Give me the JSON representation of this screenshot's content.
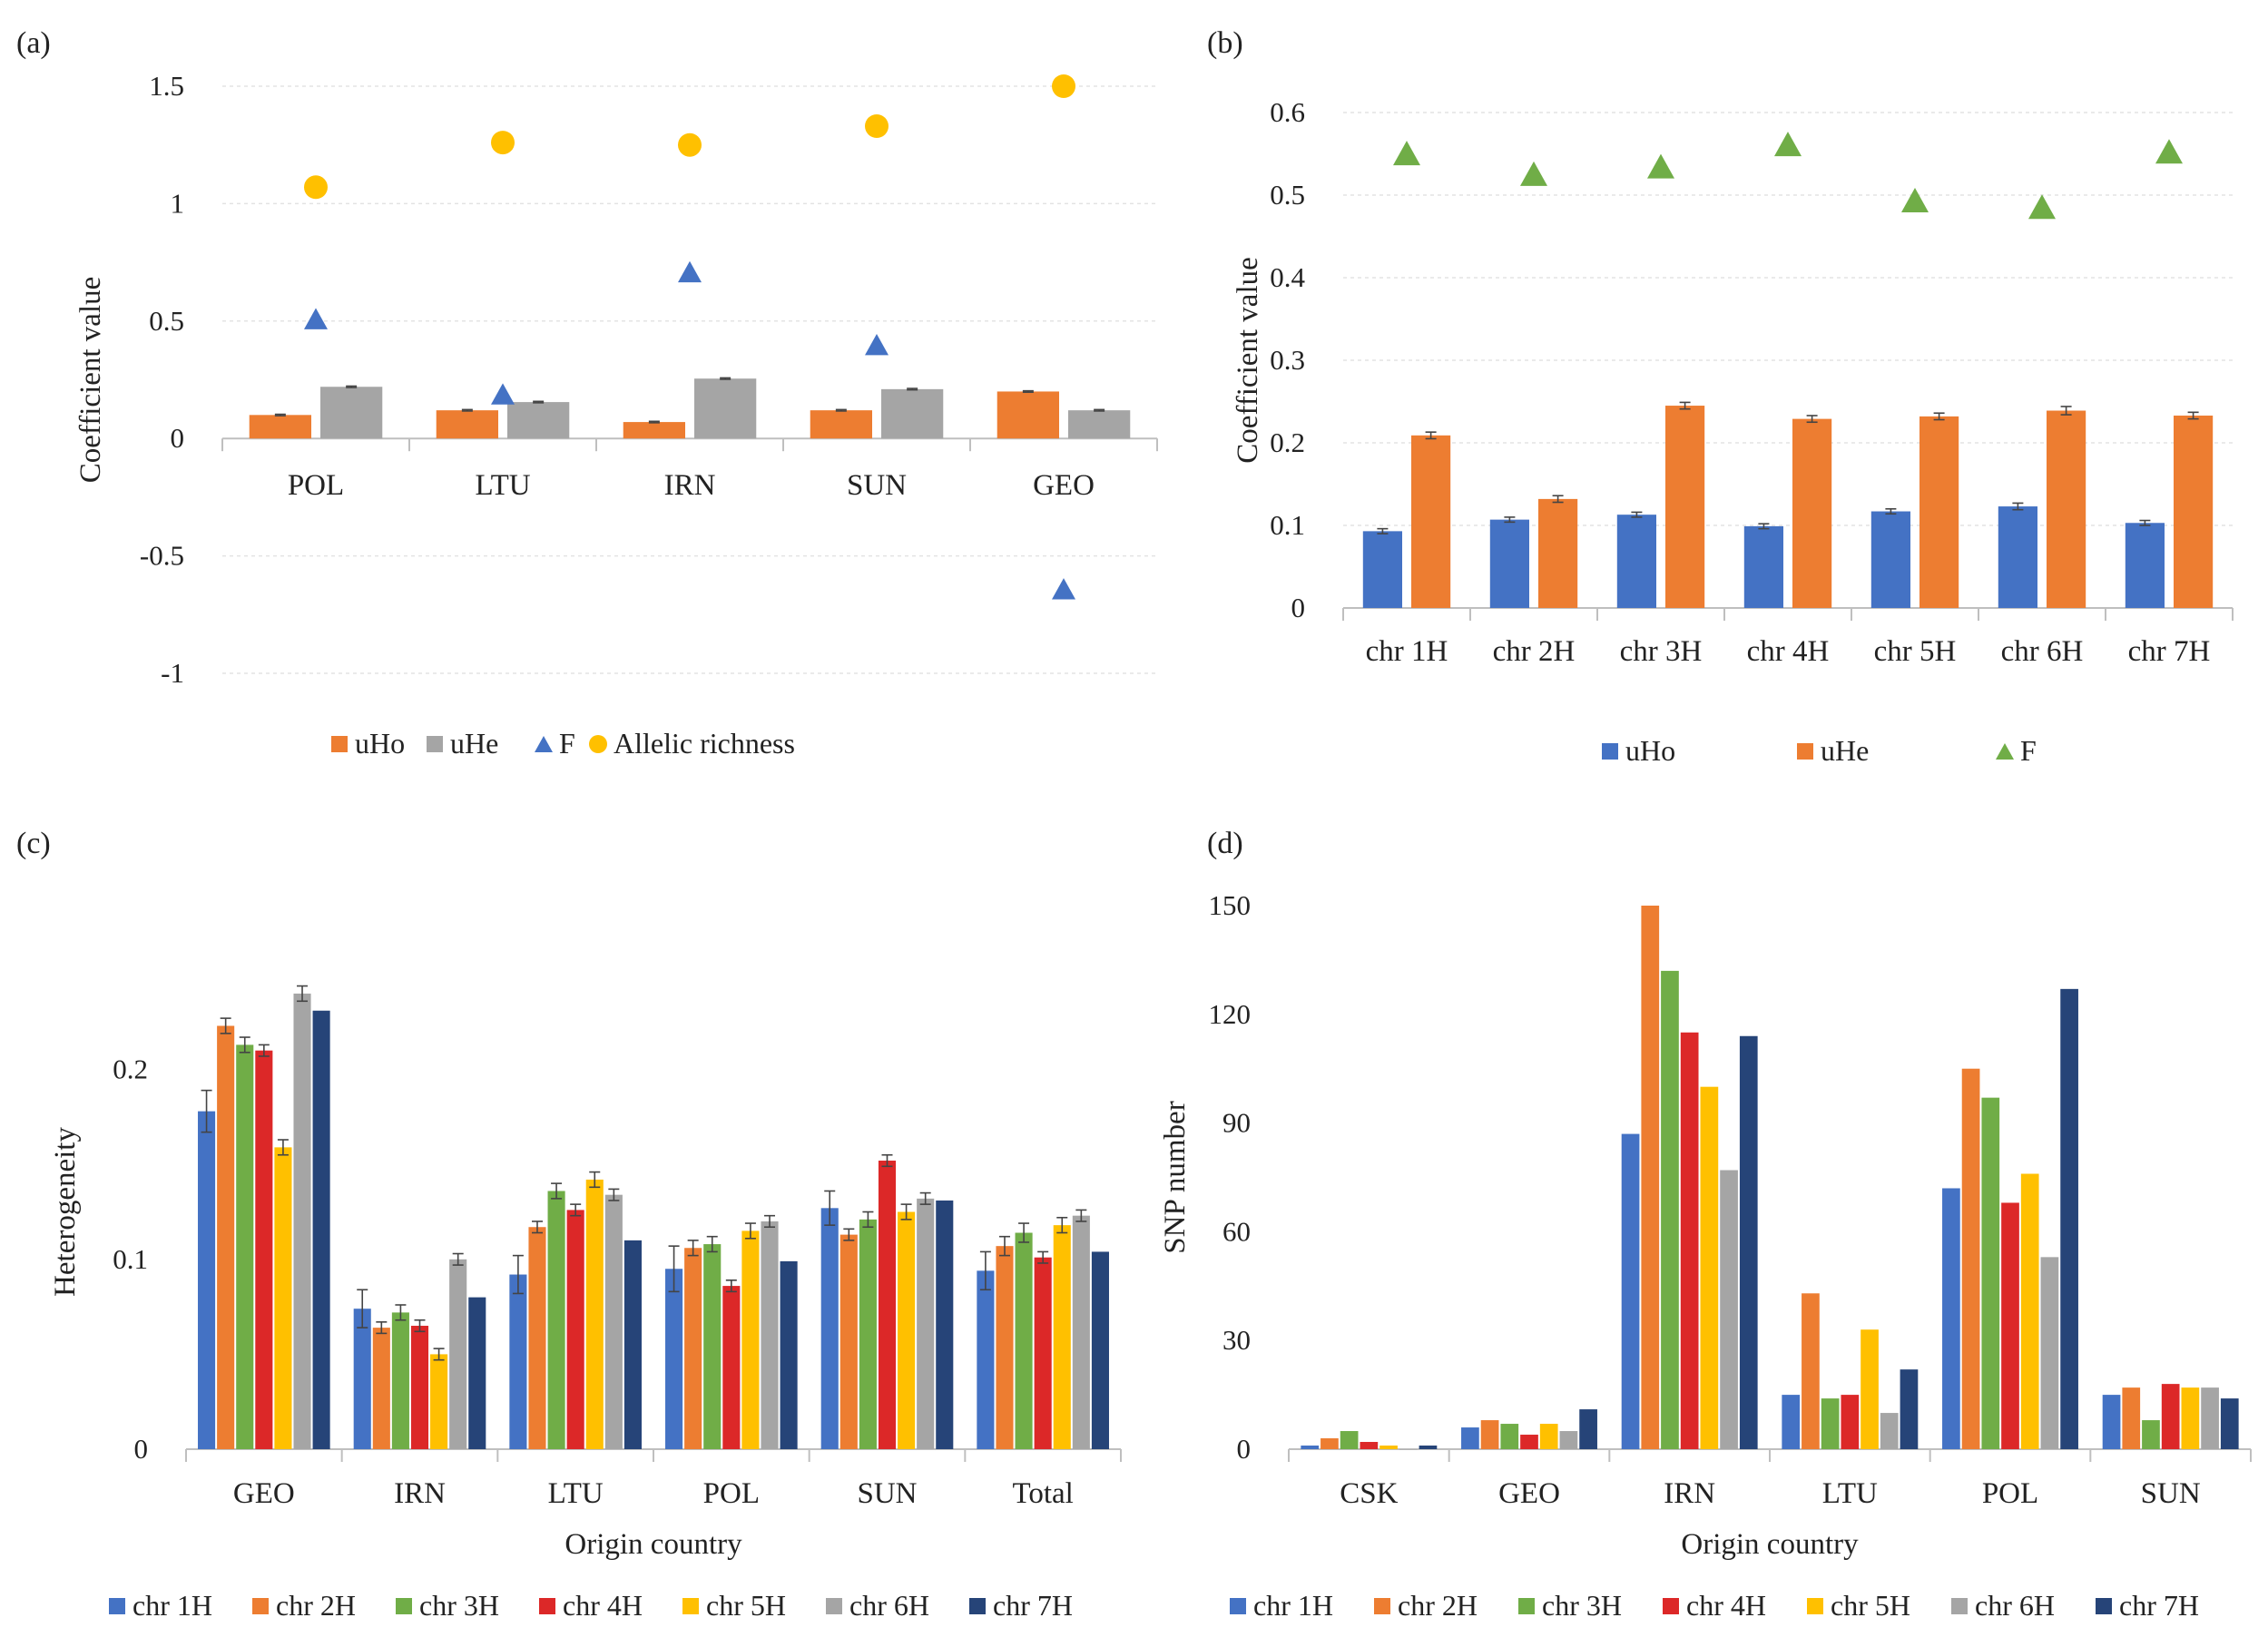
{
  "colors": {
    "uHo_a": "#ED7D31",
    "uHe_a": "#A5A5A5",
    "F_a": "#4472C4",
    "AR_a": "#FFC000",
    "uHo_b": "#4472C4",
    "uHe_b": "#ED7D31",
    "F_b": "#70AD47",
    "chr": [
      "#4472C4",
      "#ED7D31",
      "#70AD47",
      "#DC2828",
      "#FFC000",
      "#A5A5A5",
      "#264478"
    ]
  },
  "chart_data": [
    {
      "id": "a",
      "panel_label": "(a)",
      "type": "bar",
      "categories": [
        "POL",
        "LTU",
        "IRN",
        "SUN",
        "GEO"
      ],
      "ylabel": "Coefficient value",
      "xlabel": "",
      "ylim": [
        -1,
        1.5
      ],
      "yticks": [
        1.5,
        1,
        0.5,
        0,
        -0.5,
        -1
      ],
      "ytick_labels": [
        "1.5",
        "1",
        "0.5",
        "0",
        "-0.5",
        "-1"
      ],
      "grid": true,
      "legend_position": "bottom",
      "series": [
        {
          "name": "uHo",
          "kind": "bar",
          "values": [
            0.1,
            0.12,
            0.07,
            0.12,
            0.2
          ],
          "errors": [
            0.003,
            0.003,
            0.003,
            0.003,
            0.003
          ]
        },
        {
          "name": "uHe",
          "kind": "bar",
          "values": [
            0.22,
            0.155,
            0.255,
            0.21,
            0.12
          ],
          "errors": [
            0.003,
            0.003,
            0.003,
            0.003,
            0.003
          ]
        },
        {
          "name": "F",
          "kind": "triangle",
          "values": [
            0.51,
            0.19,
            0.71,
            0.4,
            -0.64
          ]
        },
        {
          "name": "Allelic richness",
          "kind": "circle",
          "values": [
            1.07,
            1.26,
            1.25,
            1.33,
            1.5
          ]
        }
      ]
    },
    {
      "id": "b",
      "panel_label": "(b)",
      "type": "bar",
      "categories": [
        "chr 1H",
        "chr 2H",
        "chr 3H",
        "chr 4H",
        "chr 5H",
        "chr 6H",
        "chr 7H"
      ],
      "ylabel": "Coefficient value",
      "xlabel": "",
      "ylim": [
        0,
        0.6
      ],
      "yticks": [
        0.6,
        0.5,
        0.4,
        0.3,
        0.2,
        0.1,
        0
      ],
      "ytick_labels": [
        "0.6",
        "0.5",
        "0.4",
        "0.3",
        "0.2",
        "0.1",
        "0"
      ],
      "grid": true,
      "legend_position": "bottom",
      "series": [
        {
          "name": "uHo",
          "kind": "bar",
          "values": [
            0.093,
            0.107,
            0.113,
            0.099,
            0.117,
            0.123,
            0.103
          ],
          "errors": [
            0.003,
            0.003,
            0.003,
            0.003,
            0.003,
            0.004,
            0.003
          ]
        },
        {
          "name": "uHe",
          "kind": "bar",
          "values": [
            0.209,
            0.132,
            0.245,
            0.229,
            0.232,
            0.239,
            0.233
          ],
          "errors": [
            0.004,
            0.004,
            0.004,
            0.004,
            0.004,
            0.005,
            0.004
          ]
        },
        {
          "name": "F",
          "kind": "triangle",
          "values": [
            0.551,
            0.526,
            0.535,
            0.562,
            0.494,
            0.486,
            0.553
          ]
        }
      ]
    },
    {
      "id": "c",
      "panel_label": "(c)",
      "type": "bar",
      "categories": [
        "GEO",
        "IRN",
        "LTU",
        "POL",
        "SUN",
        "Total"
      ],
      "ylabel": "Heterogeneity",
      "xlabel": "Origin country",
      "ylim": [
        0,
        0.25
      ],
      "yticks": [
        0.2,
        0.1,
        0
      ],
      "ytick_labels": [
        "0.2",
        "0.1",
        "0"
      ],
      "grid": false,
      "legend_position": "bottom",
      "series": [
        {
          "name": "chr 1H",
          "values": [
            0.178,
            0.074,
            0.092,
            0.095,
            0.127,
            0.094
          ],
          "errors": [
            0.011,
            0.01,
            0.01,
            0.012,
            0.009,
            0.01
          ]
        },
        {
          "name": "chr 2H",
          "values": [
            0.223,
            0.064,
            0.117,
            0.106,
            0.113,
            0.107
          ],
          "errors": [
            0.004,
            0.003,
            0.003,
            0.004,
            0.003,
            0.005
          ]
        },
        {
          "name": "chr 3H",
          "values": [
            0.213,
            0.072,
            0.136,
            0.108,
            0.121,
            0.114
          ],
          "errors": [
            0.004,
            0.004,
            0.004,
            0.004,
            0.004,
            0.005
          ]
        },
        {
          "name": "chr 4H",
          "values": [
            0.21,
            0.065,
            0.126,
            0.086,
            0.152,
            0.101
          ],
          "errors": [
            0.003,
            0.003,
            0.003,
            0.003,
            0.003,
            0.003
          ]
        },
        {
          "name": "chr 5H",
          "values": [
            0.159,
            0.05,
            0.142,
            0.115,
            0.125,
            0.118
          ],
          "errors": [
            0.004,
            0.003,
            0.004,
            0.004,
            0.004,
            0.004
          ]
        },
        {
          "name": "chr 6H",
          "values": [
            0.24,
            0.1,
            0.134,
            0.12,
            0.132,
            0.123
          ],
          "errors": [
            0.004,
            0.003,
            0.003,
            0.003,
            0.003,
            0.003
          ]
        },
        {
          "name": "chr 7H",
          "values": [
            0.231,
            0.08,
            0.11,
            0.099,
            0.131,
            0.104
          ],
          "errors": [
            0,
            0,
            0,
            0,
            0,
            0
          ]
        }
      ]
    },
    {
      "id": "d",
      "panel_label": "(d)",
      "type": "bar",
      "categories": [
        "CSK",
        "GEO",
        "IRN",
        "LTU",
        "POL",
        "SUN"
      ],
      "ylabel": "SNP number",
      "xlabel": "Origin country",
      "ylim": [
        0,
        150
      ],
      "yticks": [
        150,
        120,
        90,
        60,
        30,
        0
      ],
      "ytick_labels": [
        "150",
        "120",
        "90",
        "60",
        "30",
        "0"
      ],
      "grid": false,
      "legend_position": "bottom",
      "series": [
        {
          "name": "chr 1H",
          "values": [
            1,
            6,
            87,
            15,
            72,
            15
          ]
        },
        {
          "name": "chr 2H",
          "values": [
            3,
            8,
            150,
            43,
            105,
            17
          ]
        },
        {
          "name": "chr 3H",
          "values": [
            5,
            7,
            132,
            14,
            97,
            8
          ]
        },
        {
          "name": "chr 4H",
          "values": [
            2,
            4,
            115,
            15,
            68,
            18
          ]
        },
        {
          "name": "chr 5H",
          "values": [
            1,
            7,
            100,
            33,
            76,
            17
          ]
        },
        {
          "name": "chr 6H",
          "values": [
            0,
            5,
            77,
            10,
            53,
            17
          ]
        },
        {
          "name": "chr 7H",
          "values": [
            1,
            11,
            114,
            22,
            127,
            14
          ]
        }
      ]
    }
  ]
}
